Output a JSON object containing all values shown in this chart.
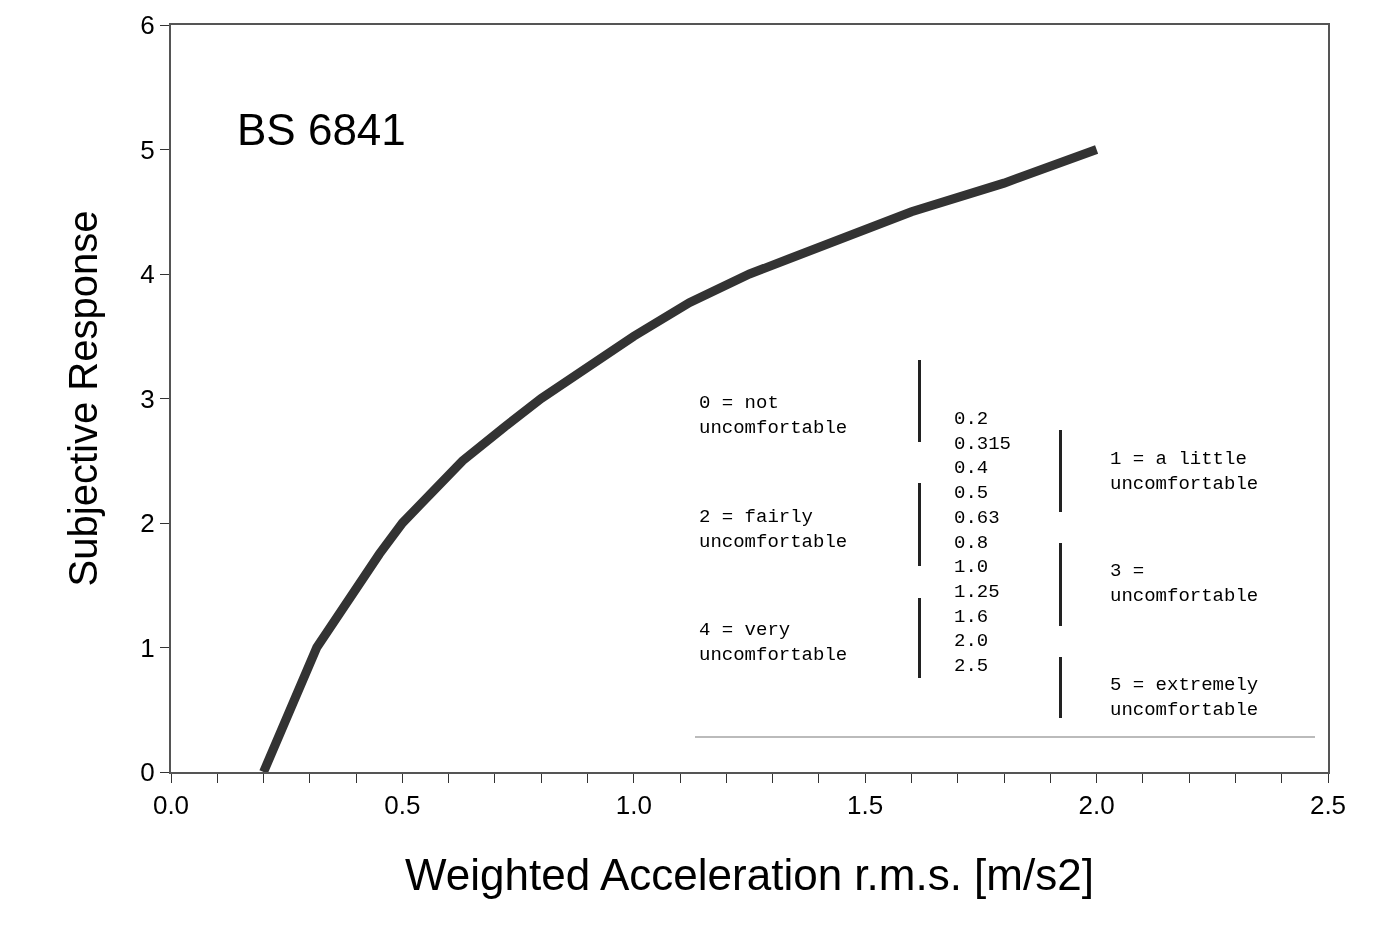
{
  "chart_data": {
    "type": "line",
    "xlabel": "Weighted Acceleration r.m.s. [m/s2]",
    "ylabel": "Subjective Response",
    "x": [
      0.2,
      0.315,
      0.45,
      0.5,
      0.63,
      0.72,
      0.8,
      1.0,
      1.12,
      1.25,
      1.6,
      1.8,
      2.0
    ],
    "series": [
      {
        "color": "#333333",
        "values": [
          0,
          1,
          1.75,
          2,
          2.5,
          2.77,
          3,
          3.5,
          3.77,
          4,
          4.5,
          4.73,
          5
        ]
      }
    ],
    "xlim": [
      0,
      2.5
    ],
    "xticks": [
      {
        "value": 0,
        "label": "0.0"
      },
      0.5,
      {
        "value": 1,
        "label": "1.0"
      },
      1.5,
      {
        "value": 2,
        "label": "2.0"
      },
      2.5
    ],
    "ylim": [
      0,
      6
    ],
    "yticks": [
      0,
      1,
      2,
      3,
      4,
      5,
      6
    ],
    "grid": false,
    "marker": "none",
    "line_style": "solid",
    "annotations": [
      "BS 6841",
      "0 = not\nuncomfortable",
      "2 = fairly\nuncomfortable",
      "4 = very\nuncomfortable",
      "0.2\n0.315\n0.4\n0.5\n0.63\n0.8\n1.0\n1.25\n1.6\n2.0\n2.5",
      "1 = a little\nuncomfortable",
      "3 =\nuncomfortable",
      "5 = extremely\nuncomfortable"
    ]
  }
}
